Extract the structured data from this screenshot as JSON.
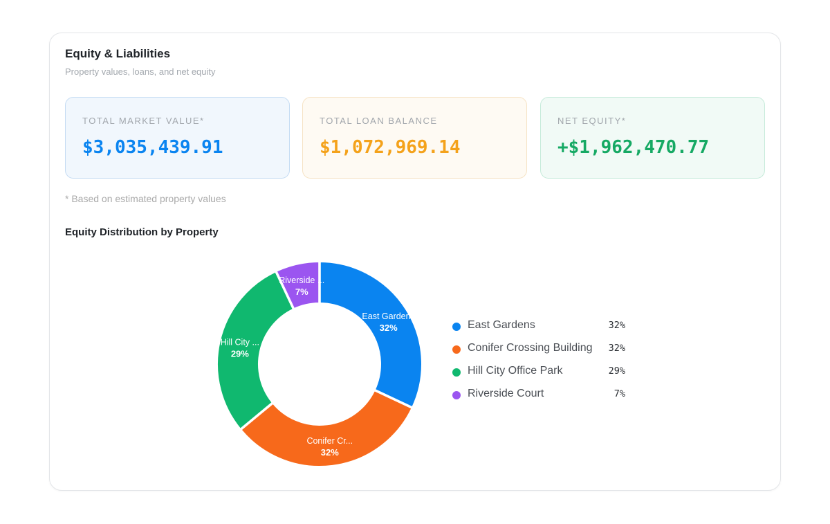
{
  "header": {
    "title": "Equity & Liabilities",
    "subtitle": "Property values, loans, and net equity"
  },
  "stats": {
    "market": {
      "label": "TOTAL MARKET VALUE*",
      "value": "$3,035,439.91",
      "color": "#0a84f0"
    },
    "loan": {
      "label": "TOTAL LOAN BALANCE",
      "value": "$1,072,969.14",
      "color": "#f4a21b"
    },
    "equity": {
      "label": "NET EQUITY*",
      "value": "+$1,962,470.77",
      "color": "#16a964"
    }
  },
  "footnote": "* Based on estimated property values",
  "section_title": "Equity Distribution by Property",
  "chart_data": {
    "type": "pie",
    "donut": true,
    "categories": [
      "East Gardens",
      "Conifer Crossing Building",
      "Hill City Office Park",
      "Riverside Court"
    ],
    "slice_labels": [
      "East Gardens",
      "Conifer Cr...",
      "Hill City ...",
      "Riverside ..."
    ],
    "values": [
      32,
      32,
      29,
      7
    ],
    "value_labels": [
      "32%",
      "32%",
      "29%",
      "7%"
    ],
    "colors": [
      "#0a84f0",
      "#f7691b",
      "#10b86f",
      "#9b55f0"
    ],
    "legend_placement": "right"
  }
}
